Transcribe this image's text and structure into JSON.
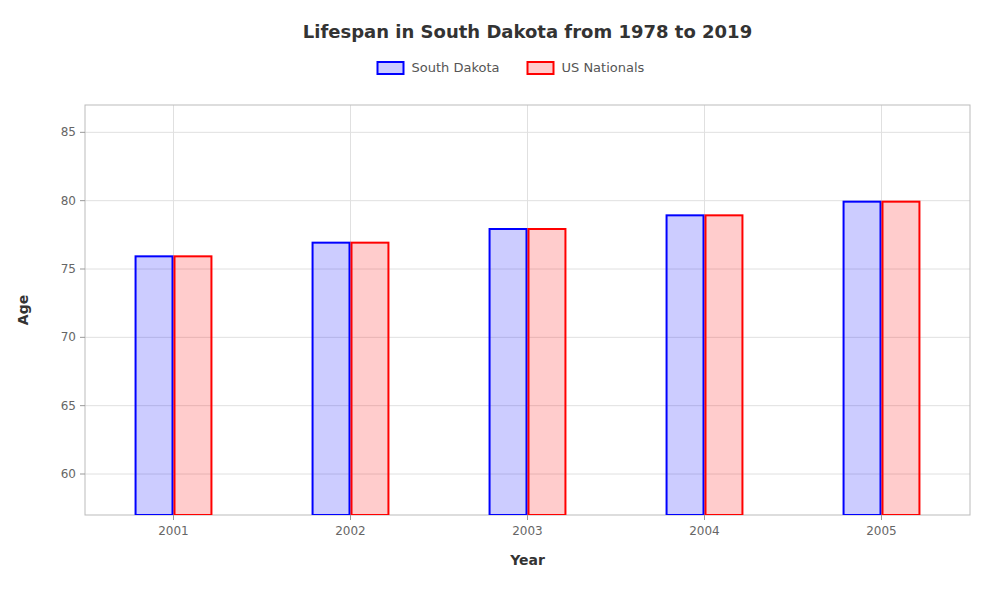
{
  "chart_data": {
    "type": "bar",
    "title": "Lifespan in South Dakota from 1978 to 2019",
    "x_label": "Year",
    "y_label": "Age",
    "categories": [
      "2001",
      "2002",
      "2003",
      "2004",
      "2005"
    ],
    "series": [
      {
        "name": "South Dakota",
        "color": "#0000ff",
        "values": [
          76,
          77,
          78,
          79,
          80
        ]
      },
      {
        "name": "US Nationals",
        "color": "#ff0000",
        "values": [
          76,
          77,
          78,
          79,
          80
        ]
      }
    ],
    "ylim": [
      57,
      87
    ],
    "yticks": [
      60,
      65,
      70,
      75,
      80,
      85
    ],
    "grid": true,
    "legend": "top"
  }
}
